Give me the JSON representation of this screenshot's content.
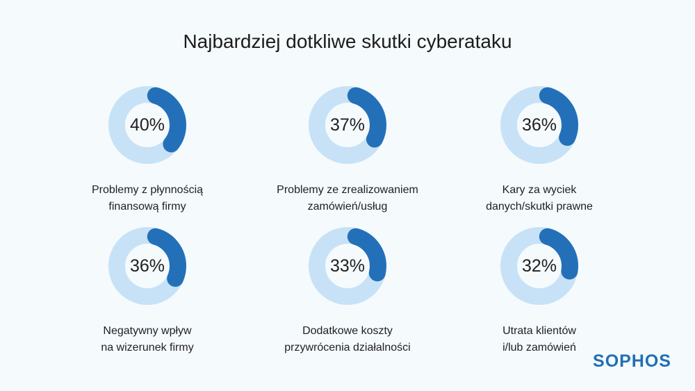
{
  "chart_data": {
    "type": "pie",
    "title": "Najbardziej dotkliwe skutki cyberataku",
    "items": [
      {
        "value": 40,
        "label_text": "40%",
        "label_lines": [
          "Problemy z płynnością",
          "finansową firmy"
        ]
      },
      {
        "value": 37,
        "label_text": "37%",
        "label_lines": [
          "Problemy ze zrealizowaniem",
          "zamówień/usług"
        ]
      },
      {
        "value": 36,
        "label_text": "36%",
        "label_lines": [
          "Kary za wyciek",
          "danych/skutki prawne"
        ]
      },
      {
        "value": 36,
        "label_text": "36%",
        "label_lines": [
          "Negatywny wpływ",
          "na wizerunek firmy"
        ]
      },
      {
        "value": 33,
        "label_text": "33%",
        "label_lines": [
          "Dodatkowe koszty",
          "przywrócenia działalności"
        ]
      },
      {
        "value": 32,
        "label_text": "32%",
        "label_lines": [
          "Utrata klientów",
          "i/lub zamówień"
        ]
      }
    ],
    "colors": {
      "filled": "#2370b9",
      "track": "#c7e2f6"
    }
  },
  "brand": {
    "logo_text": "SOPHOS"
  }
}
